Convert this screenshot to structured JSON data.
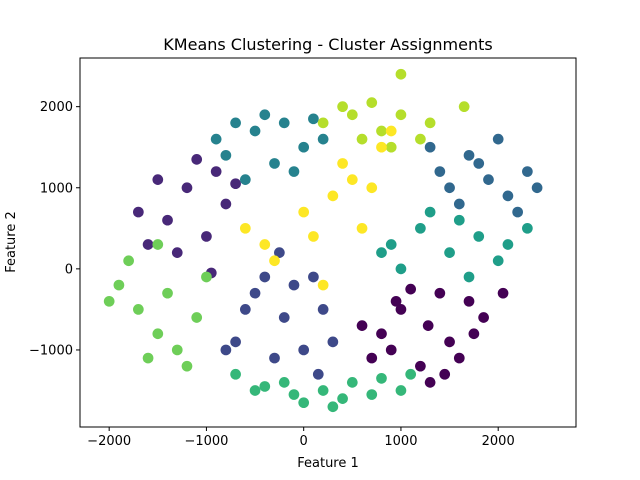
{
  "chart_data": {
    "type": "scatter",
    "title": "KMeans Clustering - Cluster Assignments",
    "xlabel": "Feature 1",
    "ylabel": "Feature 2",
    "xlim": [
      -2300,
      2800
    ],
    "ylim": [
      -1950,
      2600
    ],
    "xticks": [
      -2000,
      -1000,
      0,
      1000,
      2000
    ],
    "xtick_labels": [
      "−2000",
      "−1000",
      "0",
      "1000",
      "2000"
    ],
    "yticks": [
      -1000,
      0,
      1000,
      2000
    ],
    "ytick_labels": [
      "−1000",
      "0",
      "1000",
      "2000"
    ],
    "grid": false,
    "legend": "none",
    "marker_radius_data": 55,
    "clusters": [
      {
        "color": "#440154",
        "x": [
          1280,
          1000,
          1500,
          1700,
          800,
          1200,
          1400,
          900,
          1850,
          600,
          1100,
          1600,
          1300,
          1750,
          950,
          1450,
          700,
          2050
        ],
        "y": [
          -700,
          -500,
          -900,
          -400,
          -800,
          -1200,
          -300,
          -1000,
          -600,
          -700,
          -250,
          -1100,
          -1400,
          -800,
          -400,
          -1300,
          -1100,
          -300
        ]
      },
      {
        "color": "#482878",
        "x": [
          -1400,
          -1200,
          -900,
          -1600,
          -1000,
          -800,
          -1300,
          -1700,
          -1100,
          -700,
          -1500,
          -950
        ],
        "y": [
          600,
          1000,
          1200,
          300,
          400,
          800,
          200,
          700,
          1350,
          1050,
          1100,
          -50
        ]
      },
      {
        "color": "#3e4989",
        "x": [
          -500,
          -200,
          100,
          -700,
          0,
          -400,
          200,
          -100,
          -600,
          300,
          -300,
          150,
          -800,
          -250
        ],
        "y": [
          -300,
          -600,
          -100,
          -900,
          -1000,
          -100,
          -500,
          -200,
          -500,
          -900,
          -1100,
          -1300,
          -1000,
          200
        ]
      },
      {
        "color": "#31688e",
        "x": [
          1500,
          1800,
          2100,
          2300,
          1300,
          1600,
          2000,
          2400,
          1900,
          1700,
          2200,
          1400
        ],
        "y": [
          1000,
          1300,
          900,
          1200,
          1500,
          800,
          1600,
          1000,
          1100,
          1400,
          700,
          1200
        ]
      },
      {
        "color": "#26828e",
        "x": [
          -800,
          -500,
          -300,
          -600,
          0,
          -200,
          200,
          -900,
          -400,
          -100,
          -700,
          100
        ],
        "y": [
          1400,
          1700,
          1300,
          1100,
          1500,
          1800,
          1600,
          1600,
          1900,
          1200,
          1800,
          1850
        ]
      },
      {
        "color": "#1f9e89",
        "x": [
          900,
          1200,
          1500,
          1800,
          2100,
          1000,
          1300,
          1600,
          2000,
          2300,
          800,
          1700
        ],
        "y": [
          300,
          500,
          200,
          400,
          300,
          0,
          700,
          600,
          100,
          500,
          200,
          -100
        ]
      },
      {
        "color": "#35b779",
        "x": [
          -700,
          -400,
          -100,
          200,
          500,
          800,
          1000,
          -500,
          0,
          400,
          -200,
          700,
          1100,
          300
        ],
        "y": [
          -1300,
          -1450,
          -1550,
          -1500,
          -1400,
          -1350,
          -1500,
          -1500,
          -1650,
          -1600,
          -1400,
          -1550,
          -1300,
          -1700
        ]
      },
      {
        "color": "#6ece58",
        "x": [
          -1900,
          -1700,
          -1500,
          -1300,
          -1100,
          -1800,
          -1600,
          -1400,
          -1200,
          -2000,
          -1000,
          -1500
        ],
        "y": [
          -200,
          -500,
          -800,
          -1000,
          -600,
          100,
          -1100,
          -300,
          -1200,
          -400,
          -100,
          300
        ]
      },
      {
        "color": "#b5de2b",
        "x": [
          200,
          500,
          800,
          1000,
          1200,
          400,
          700,
          1000,
          900,
          1300,
          600,
          1650
        ],
        "y": [
          1800,
          1900,
          1700,
          1900,
          1600,
          2000,
          2050,
          2400,
          1500,
          1800,
          1600,
          2000
        ]
      },
      {
        "color": "#fde725",
        "x": [
          0,
          300,
          500,
          -400,
          800,
          100,
          -300,
          600,
          900,
          200,
          400,
          -600,
          700
        ],
        "y": [
          700,
          900,
          1100,
          300,
          1500,
          400,
          100,
          500,
          1700,
          -200,
          1300,
          500,
          1000
        ]
      }
    ]
  }
}
